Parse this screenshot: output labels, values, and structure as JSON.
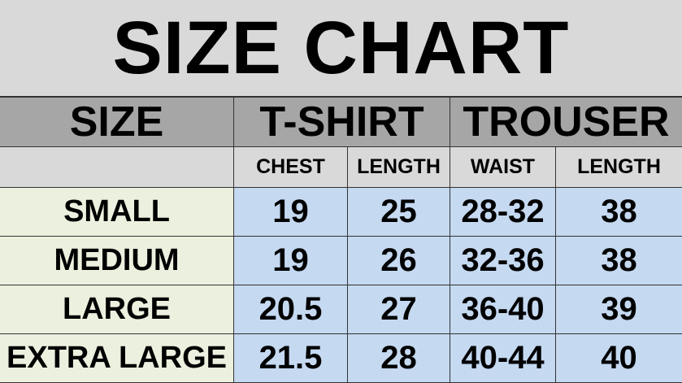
{
  "title": "SIZE CHART",
  "headers": {
    "size": "SIZE",
    "tshirt": "T-SHIRT",
    "trouser": "TROUSER"
  },
  "subheaders": [
    "CHEST",
    "LENGTH",
    "WAIST",
    "LENGTH"
  ],
  "rows": [
    {
      "size": "SMALL",
      "values": [
        "19",
        "25",
        "28-32",
        "38"
      ]
    },
    {
      "size": "MEDIUM",
      "values": [
        "19",
        "26",
        "32-36",
        "38"
      ]
    },
    {
      "size": "LARGE",
      "values": [
        "20.5",
        "27",
        "36-40",
        "39"
      ]
    },
    {
      "size": "EXTRA LARGE",
      "values": [
        "21.5",
        "28",
        "40-44",
        "40"
      ]
    }
  ],
  "colors": {
    "title_bg": "#d9d9d9",
    "header_bg": "#a6a6a6",
    "size_col_bg": "#ebf1de",
    "value_bg": "#c5d9f1"
  }
}
